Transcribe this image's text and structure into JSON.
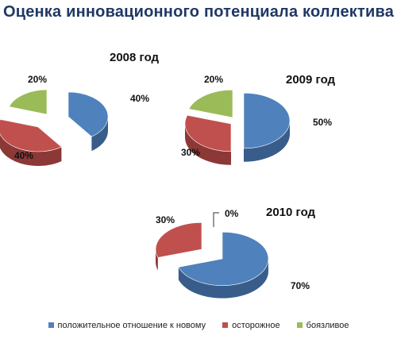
{
  "title": "Оценка инновационного потенциала коллектива",
  "chart_data": [
    {
      "type": "pie",
      "title": "2008 год",
      "categories": [
        "положительное отношение к новому",
        "осторожное",
        "боязливое"
      ],
      "values": [
        40,
        40,
        20
      ],
      "labels": [
        "40%",
        "40%",
        "20%"
      ]
    },
    {
      "type": "pie",
      "title": "2009 год",
      "categories": [
        "положительное отношение к новому",
        "осторожное",
        "боязливое"
      ],
      "values": [
        50,
        30,
        20
      ],
      "labels": [
        "50%",
        "30%",
        "20%"
      ]
    },
    {
      "type": "pie",
      "title": "2010 год",
      "categories": [
        "положительное отношение к новому",
        "осторожное",
        "боязливое"
      ],
      "values": [
        70,
        30,
        0
      ],
      "labels": [
        "70%",
        "30%",
        "0%"
      ]
    }
  ],
  "legend": [
    {
      "label": "положительное отношение к новому",
      "color": "#4f81bd"
    },
    {
      "label": "осторожное",
      "color": "#c0504d"
    },
    {
      "label": "боязливое",
      "color": "#9bbb59"
    }
  ],
  "colors": {
    "series": [
      "#4f81bd",
      "#c0504d",
      "#9bbb59"
    ],
    "sides": [
      "#385d8a",
      "#8c3836",
      "#71893f"
    ],
    "title": "#1f3864"
  }
}
